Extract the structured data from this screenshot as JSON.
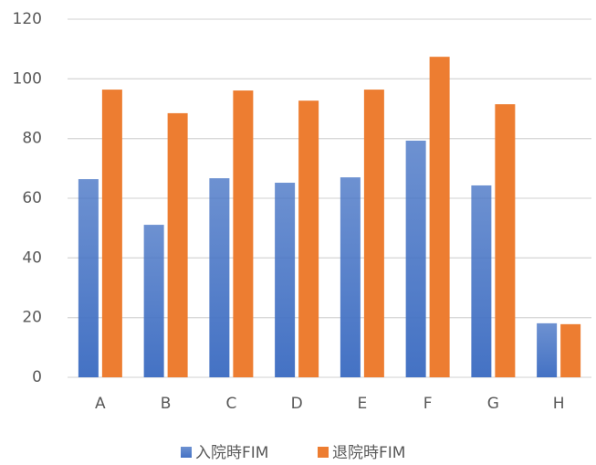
{
  "chart_data": {
    "type": "bar",
    "categories": [
      "A",
      "B",
      "C",
      "D",
      "E",
      "F",
      "G",
      "H"
    ],
    "series": [
      {
        "name": "入院時FIM",
        "color": "#4472c4",
        "gradient": true,
        "values": [
          66.4,
          51.1,
          66.7,
          65.2,
          67.0,
          79.3,
          64.3,
          18.1
        ]
      },
      {
        "name": "退院時FIM",
        "color": "#ed7d31",
        "values": [
          96.4,
          88.5,
          96.1,
          92.7,
          96.4,
          107.4,
          91.5,
          17.8
        ]
      }
    ],
    "ylim": [
      0,
      120
    ],
    "yticks": [
      0,
      20,
      40,
      60,
      80,
      100,
      120
    ],
    "grid": true,
    "legend": "bottom"
  }
}
